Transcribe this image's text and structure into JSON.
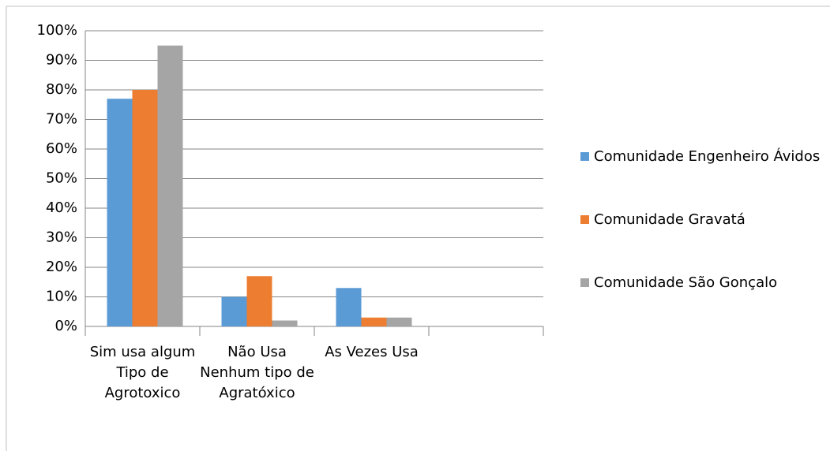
{
  "chart_data": {
    "type": "bar",
    "categories": [
      "Sim usa algum Tipo de Agrotoxico",
      "Não Usa Nenhum tipo de Agratóxico",
      "As Vezes Usa",
      null
    ],
    "series": [
      {
        "name": "Comunidade Engenheiro Ávidos",
        "color": "#5b9bd5",
        "values": [
          77,
          10,
          13,
          null
        ]
      },
      {
        "name": "Comunidade Gravatá",
        "color": "#ed7d31",
        "values": [
          80,
          17,
          3,
          null
        ]
      },
      {
        "name": "Comunidade São Gonçalo",
        "color": "#a5a5a5",
        "values": [
          95,
          2,
          3,
          null
        ]
      }
    ],
    "ylim": [
      0,
      100
    ],
    "yticks": [
      {
        "value": 0,
        "label": "0%"
      },
      {
        "value": 10,
        "label": "10%"
      },
      {
        "value": 20,
        "label": "20%"
      },
      {
        "value": 30,
        "label": "30%"
      },
      {
        "value": 40,
        "label": "40%"
      },
      {
        "value": 50,
        "label": "50%"
      },
      {
        "value": 60,
        "label": "60%"
      },
      {
        "value": 70,
        "label": "70%"
      },
      {
        "value": 80,
        "label": "80%"
      },
      {
        "value": 90,
        "label": "90%"
      },
      {
        "value": 100,
        "label": "100%"
      }
    ],
    "grid": true,
    "legend": "right"
  }
}
